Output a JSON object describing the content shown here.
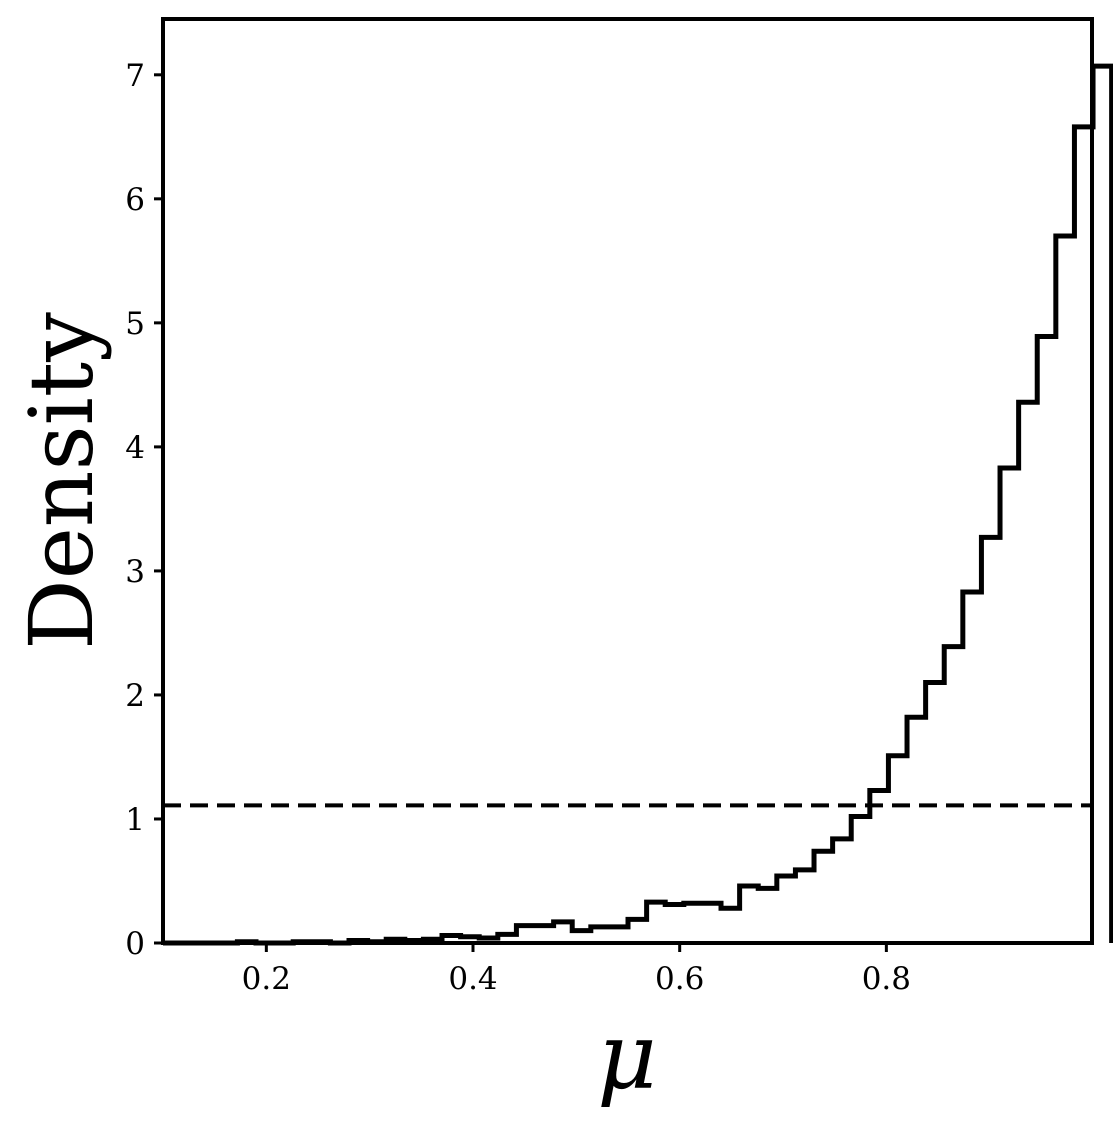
{
  "chart_data": {
    "type": "step-histogram",
    "xlabel": "μ",
    "ylabel": "Density",
    "xlim": [
      0.1,
      0.999
    ],
    "ylim": [
      0,
      7.45
    ],
    "xticks": [
      0.2,
      0.4,
      0.6,
      0.8
    ],
    "xtick_labels": [
      "0.2",
      "0.4",
      "0.6",
      "0.8"
    ],
    "yticks": [
      0,
      1,
      2,
      3,
      4,
      5,
      6,
      7
    ],
    "ytick_labels": [
      "0",
      "1",
      "2",
      "3",
      "4",
      "5",
      "6",
      "7"
    ],
    "bin_start": 0.1,
    "bin_width": 0.018,
    "densities": [
      0.0,
      0.0,
      0.0,
      0.0,
      0.01,
      0.0,
      0.0,
      0.01,
      0.01,
      0.0,
      0.02,
      0.01,
      0.03,
      0.02,
      0.03,
      0.06,
      0.05,
      0.04,
      0.07,
      0.14,
      0.14,
      0.17,
      0.1,
      0.13,
      0.13,
      0.19,
      0.33,
      0.31,
      0.32,
      0.32,
      0.28,
      0.46,
      0.44,
      0.54,
      0.59,
      0.74,
      0.84,
      1.02,
      1.23,
      1.51,
      1.82,
      2.1,
      2.39,
      2.83,
      3.27,
      3.83,
      4.36,
      4.89,
      5.7,
      6.58,
      7.07
    ],
    "reference_line": {
      "y": 1.11,
      "style": "dashed"
    },
    "grid": false,
    "legend": "none",
    "line_color": "#000000"
  }
}
